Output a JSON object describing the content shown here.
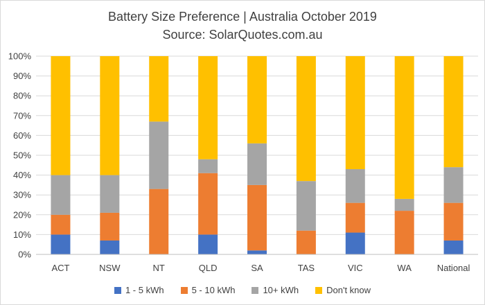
{
  "chart_data": {
    "type": "bar",
    "stacked": true,
    "title": "Battery Size Preference  | Australia October 2019",
    "subtitle": "Source: SolarQuotes.com.au",
    "categories": [
      "ACT",
      "NSW",
      "NT",
      "QLD",
      "SA",
      "TAS",
      "VIC",
      "WA",
      "National"
    ],
    "series": [
      {
        "name": "1 - 5 kWh",
        "color": "#4472c4",
        "values": [
          10,
          7,
          0,
          10,
          2,
          0,
          11,
          0,
          7
        ]
      },
      {
        "name": "5 - 10 kWh",
        "color": "#ed7d31",
        "values": [
          10,
          14,
          33,
          31,
          33,
          12,
          15,
          22,
          19
        ]
      },
      {
        "name": "10+ kWh",
        "color": "#a5a5a5",
        "values": [
          20,
          19,
          34,
          7,
          21,
          25,
          17,
          6,
          18
        ]
      },
      {
        "name": "Don't know",
        "color": "#ffc000",
        "values": [
          60,
          60,
          33,
          52,
          44,
          63,
          57,
          72,
          56
        ]
      }
    ],
    "yticks": [
      "0%",
      "10%",
      "20%",
      "30%",
      "40%",
      "50%",
      "60%",
      "70%",
      "80%",
      "90%",
      "100%"
    ],
    "ylim": [
      0,
      100
    ],
    "grid": true,
    "legend_position": "bottom"
  }
}
